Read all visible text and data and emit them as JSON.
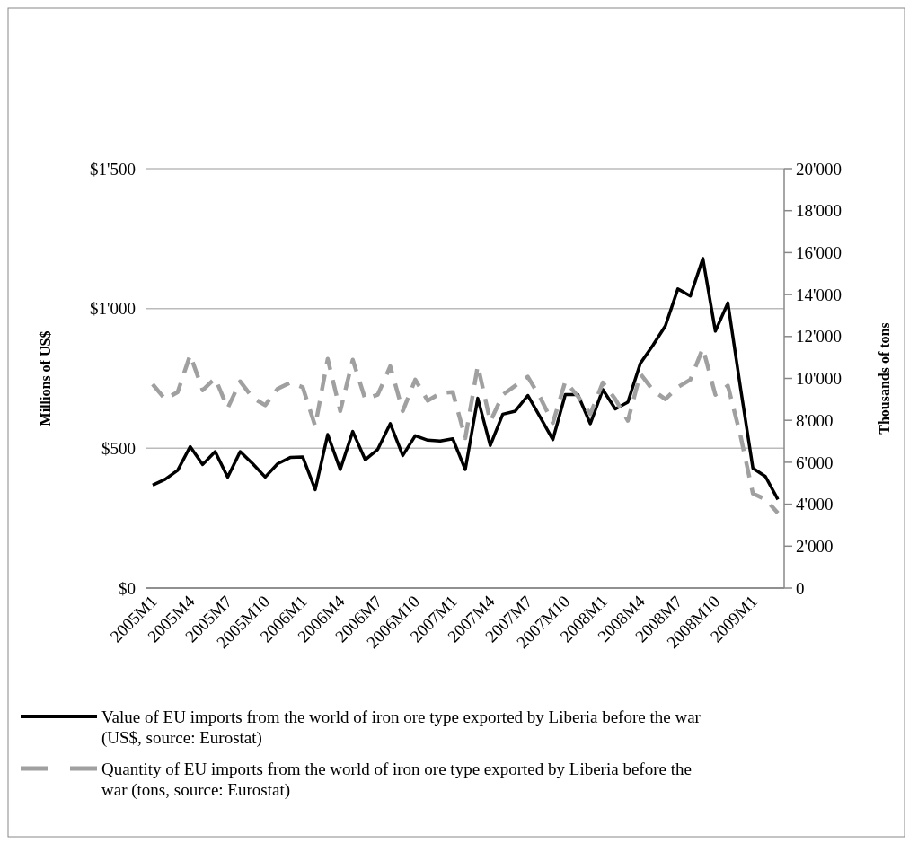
{
  "chart_data": {
    "type": "line",
    "ylabel": "Millions of US$",
    "y2label": "Thousands of tons",
    "categories": [
      "2005M1",
      null,
      null,
      "2005M4",
      null,
      null,
      "2005M7",
      null,
      null,
      "2005M10",
      null,
      null,
      "2006M1",
      null,
      null,
      "2006M4",
      null,
      null,
      "2006M7",
      null,
      null,
      "2006M10",
      null,
      null,
      "2007M1",
      null,
      null,
      "2007M4",
      null,
      null,
      "2007M7",
      null,
      null,
      "2007M10",
      null,
      null,
      "2008M1",
      null,
      null,
      "2008M4",
      null,
      null,
      "2008M7",
      null,
      null,
      "2008M10",
      null,
      null,
      "2009M1",
      null,
      null
    ],
    "series": [
      {
        "name": "Value of EU imports from the world of iron ore type exported by Liberia before the war (US$, source: Eurostat)",
        "color": "#000000",
        "line_style": "solid",
        "values": [
          368,
          389,
          421,
          506,
          442,
          488,
          397,
          488,
          445,
          397,
          445,
          467,
          469,
          352,
          549,
          424,
          560,
          459,
          496,
          588,
          474,
          545,
          529,
          526,
          534,
          424,
          679,
          510,
          622,
          633,
          689,
          611,
          531,
          692,
          692,
          588,
          710,
          641,
          665,
          804,
          868,
          938,
          1070,
          1045,
          1179,
          919,
          1020,
          719,
          429,
          399,
          317
        ]
      },
      {
        "name": "Quantity of EU imports from the world of iron ore type exported by Liberia before the war (tons, source: Eurostat)",
        "color": "#a0a0a0",
        "line_style": "dashed",
        "axis": "y2",
        "values": [
          9720,
          9010,
          9350,
          11120,
          9440,
          10010,
          8580,
          9860,
          9080,
          8720,
          9510,
          9800,
          9580,
          7720,
          10930,
          8440,
          10890,
          9010,
          9220,
          10580,
          8440,
          9940,
          8940,
          9290,
          9350,
          7150,
          10610,
          7940,
          9220,
          9650,
          10080,
          9080,
          7870,
          9860,
          9150,
          8300,
          9800,
          9010,
          7980,
          10220,
          9440,
          9010,
          9580,
          9940,
          11440,
          9220,
          9650,
          7290,
          4510,
          4230,
          3580
        ]
      }
    ],
    "ylim": [
      0,
      1500
    ],
    "yticks": [
      {
        "value": 0,
        "label": "$0"
      },
      {
        "value": 500,
        "label": "$500"
      },
      {
        "value": 1000,
        "label": "$1'000"
      },
      {
        "value": 1500,
        "label": "$1'500"
      }
    ],
    "y2lim": [
      0,
      20000
    ],
    "y2ticks": [
      0,
      {
        "value": 2000,
        "label": "2'000"
      },
      {
        "value": 4000,
        "label": "4'000"
      },
      {
        "value": 6000,
        "label": "6'000"
      },
      {
        "value": 8000,
        "label": "8'000"
      },
      {
        "value": 10000,
        "label": "10'000"
      },
      {
        "value": 12000,
        "label": "12'000"
      },
      {
        "value": 14000,
        "label": "14'000"
      },
      {
        "value": 16000,
        "label": "16'000"
      },
      {
        "value": 18000,
        "label": "18'000"
      },
      {
        "value": 20000,
        "label": "20'000"
      }
    ],
    "grid": "y",
    "legend": "bottom",
    "marker": "none"
  }
}
